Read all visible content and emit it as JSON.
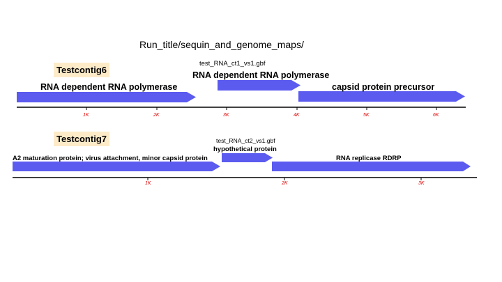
{
  "title": "Run_title/sequin_and_genome_maps/",
  "colors": {
    "arrow": "#5b5bf0",
    "axis": "#000000",
    "tick_label": "#e00000",
    "contig_label_bg": "#fdebc8"
  },
  "contigs": [
    {
      "name": "Testcontig6",
      "file": "test_RNA_ct1_vs1.gbf",
      "ticks": [
        "1K",
        "2K",
        "3K",
        "4K",
        "5K",
        "6K"
      ],
      "genes": [
        {
          "label": "RNA dependent RNA polymerase",
          "strand": "+"
        },
        {
          "label": "RNA dependent RNA polymerase",
          "strand": "+"
        },
        {
          "label": "capsid protein precursor",
          "strand": "+"
        }
      ]
    },
    {
      "name": "Testcontig7",
      "file": "test_RNA_ct2_vs1.gbf",
      "ticks": [
        "1K",
        "2K",
        "3K"
      ],
      "genes": [
        {
          "label": "A2 maturation protein; virus attachment, minor capsid protein",
          "strand": "+"
        },
        {
          "label": "hypothetical protein",
          "strand": "+"
        },
        {
          "label": "RNA replicase RDRP",
          "strand": "+"
        }
      ]
    }
  ]
}
